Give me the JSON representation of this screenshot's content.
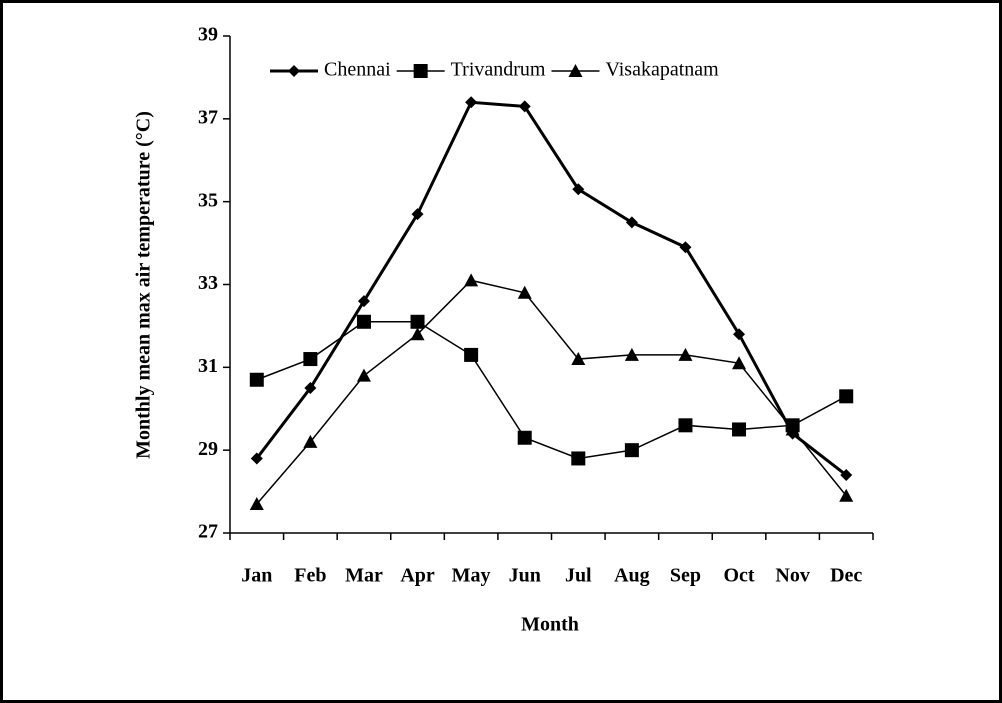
{
  "chart_data": {
    "type": "line",
    "x_label": "Month",
    "y_label": "Monthly mean max air temperature (°C)",
    "categories": [
      "Jan",
      "Feb",
      "Mar",
      "Apr",
      "May",
      "Jun",
      "Jul",
      "Aug",
      "Sep",
      "Oct",
      "Nov",
      "Dec"
    ],
    "series": [
      {
        "name": "Chennai",
        "color": "#000000",
        "marker": "diamond",
        "line_width": 3,
        "values": [
          28.8,
          30.5,
          32.6,
          34.7,
          37.4,
          37.3,
          35.3,
          34.5,
          33.9,
          31.8,
          29.4,
          28.4
        ]
      },
      {
        "name": "Trivandrum",
        "color": "#000000",
        "marker": "square",
        "line_width": 1.5,
        "values": [
          30.7,
          31.2,
          32.1,
          32.1,
          31.3,
          29.3,
          28.8,
          29.0,
          29.6,
          29.5,
          29.6,
          30.3
        ]
      },
      {
        "name": "Visakapatnam",
        "color": "#000000",
        "marker": "triangle",
        "line_width": 1.5,
        "values": [
          27.7,
          29.2,
          30.8,
          31.8,
          33.1,
          32.8,
          31.2,
          31.3,
          31.3,
          31.1,
          29.5,
          27.9
        ]
      }
    ],
    "ylim": [
      27,
      39
    ],
    "yticks": [
      27,
      29,
      31,
      33,
      35,
      37,
      39
    ],
    "grid": false,
    "legend": "top"
  }
}
